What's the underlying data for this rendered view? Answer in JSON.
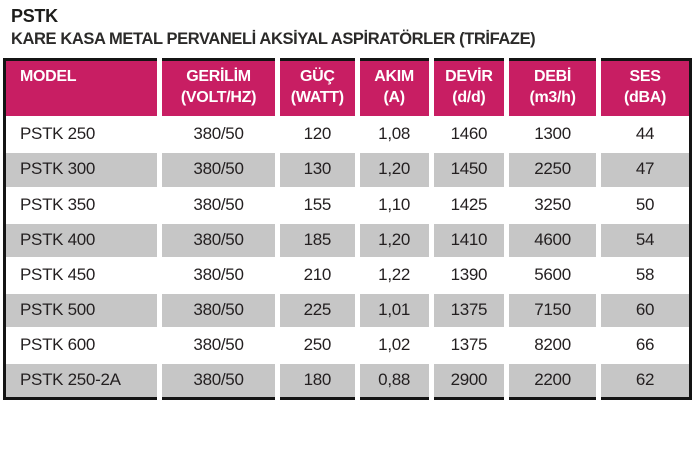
{
  "page": {
    "title": "PSTK",
    "subtitle": "KARE KASA METAL PERVANELİ AKSİYAL ASPİRATÖRLER (TRİFAZE)"
  },
  "colors": {
    "header_bg": "#C81E63",
    "header_text": "#FFFFFF",
    "row_alt_bg": "#C6C6C6",
    "row_bg": "#FFFFFF",
    "table_border": "#141414",
    "body_text": "#231F20"
  },
  "table": {
    "columns": [
      {
        "id": "model",
        "line1": "MODEL",
        "line2": ""
      },
      {
        "id": "gerilim",
        "line1": "GERİLİM",
        "line2": "(VOLT/HZ)"
      },
      {
        "id": "guc",
        "line1": "GÜÇ",
        "line2": "(WATT)"
      },
      {
        "id": "akim",
        "line1": "AKIM",
        "line2": "(A)"
      },
      {
        "id": "devir",
        "line1": "DEVİR",
        "line2": "(d/d)"
      },
      {
        "id": "debi",
        "line1": "DEBİ",
        "line2": "(m3/h)"
      },
      {
        "id": "ses",
        "line1": "SES",
        "line2": "(dBA)"
      }
    ],
    "rows": [
      [
        "PSTK 250",
        "380/50",
        "120",
        "1,08",
        "1460",
        "1300",
        "44"
      ],
      [
        "PSTK 300",
        "380/50",
        "130",
        "1,20",
        "1450",
        "2250",
        "47"
      ],
      [
        "PSTK 350",
        "380/50",
        "155",
        "1,10",
        "1425",
        "3250",
        "50"
      ],
      [
        "PSTK 400",
        "380/50",
        "185",
        "1,20",
        "1410",
        "4600",
        "54"
      ],
      [
        "PSTK 450",
        "380/50",
        "210",
        "1,22",
        "1390",
        "5600",
        "58"
      ],
      [
        "PSTK 500",
        "380/50",
        "225",
        "1,01",
        "1375",
        "7150",
        "60"
      ],
      [
        "PSTK 600",
        "380/50",
        "250",
        "1,02",
        "1375",
        "8200",
        "66"
      ],
      [
        "PSTK 250-2A",
        "380/50",
        "180",
        "0,88",
        "2900",
        "2200",
        "62"
      ]
    ]
  }
}
